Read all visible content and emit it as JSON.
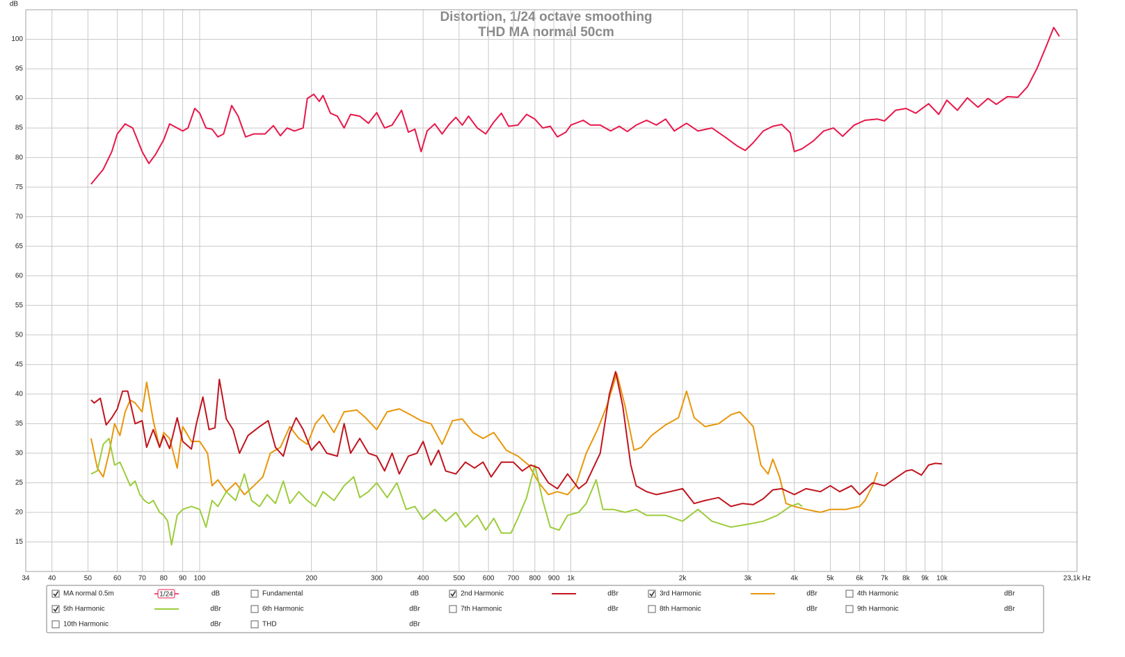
{
  "chart_data": {
    "type": "line",
    "title": "Distortion, 1/24 octave smoothing",
    "subtitle": "THD MA normal 50cm",
    "y_label": "dB",
    "log_x": true,
    "grid": true,
    "xlim": [
      34,
      23100
    ],
    "ylim": [
      10,
      105
    ],
    "xticks": [
      34,
      40,
      50,
      60,
      70,
      80,
      90,
      100,
      200,
      300,
      400,
      500,
      600,
      700,
      800,
      900,
      {
        "value": 1000,
        "label": "1k"
      },
      {
        "value": 2000,
        "label": "2k"
      },
      {
        "value": 3000,
        "label": "3k"
      },
      {
        "value": 4000,
        "label": "4k"
      },
      {
        "value": 5000,
        "label": "5k"
      },
      {
        "value": 6000,
        "label": "6k"
      },
      {
        "value": 7000,
        "label": "7k"
      },
      {
        "value": 8000,
        "label": "8k"
      },
      {
        "value": 9000,
        "label": "9k"
      },
      {
        "value": 10000,
        "label": "10k"
      },
      {
        "value": 23100,
        "label": "23,1k Hz"
      }
    ],
    "yticks": [
      15,
      20,
      25,
      30,
      35,
      40,
      45,
      50,
      55,
      60,
      65,
      70,
      75,
      80,
      85,
      90,
      95,
      100
    ],
    "series": [
      {
        "name": "MA normal 0.5m",
        "color": "#e8174a",
        "checked": true,
        "unit": "dB",
        "smoothing": "1/24",
        "x": [
          51,
          55,
          58,
          60,
          63,
          66,
          68,
          70,
          73,
          76,
          80,
          83,
          87,
          90,
          93,
          97,
          100,
          104,
          108,
          112,
          116,
          122,
          127,
          133,
          140,
          150,
          158,
          165,
          172,
          180,
          190,
          195,
          203,
          210,
          215,
          225,
          235,
          245,
          255,
          270,
          285,
          300,
          315,
          330,
          350,
          365,
          380,
          395,
          410,
          430,
          450,
          470,
          490,
          510,
          530,
          560,
          590,
          620,
          650,
          680,
          720,
          760,
          800,
          840,
          880,
          920,
          970,
          1000,
          1080,
          1130,
          1200,
          1280,
          1350,
          1420,
          1500,
          1600,
          1700,
          1800,
          1900,
          2050,
          2200,
          2400,
          2600,
          2800,
          2950,
          3100,
          3300,
          3500,
          3700,
          3900,
          4000,
          4200,
          4500,
          4800,
          5100,
          5400,
          5800,
          6200,
          6700,
          7000,
          7500,
          8000,
          8500,
          9200,
          9800,
          10300,
          11000,
          11700,
          12500,
          13300,
          14000,
          15000,
          16000,
          17000,
          18000,
          19000,
          20000,
          20700
        ],
        "values": [
          75.5,
          78,
          81,
          84,
          85.7,
          85,
          83,
          81,
          79,
          80.5,
          83,
          85.7,
          85,
          84.5,
          85,
          88.3,
          87.5,
          85,
          84.8,
          83.5,
          84,
          88.8,
          87,
          83.5,
          84,
          84,
          85.4,
          83.7,
          85,
          84.5,
          85,
          90,
          90.7,
          89.5,
          90.5,
          87.5,
          87,
          85,
          87.3,
          87,
          85.8,
          87.6,
          85,
          85.5,
          88,
          84.3,
          84.8,
          81,
          84.5,
          85.7,
          84,
          85.6,
          86.8,
          85.5,
          87,
          85,
          84,
          86,
          87.5,
          85.3,
          85.5,
          87.3,
          86.5,
          85,
          85.3,
          83.5,
          84.3,
          85.5,
          86.3,
          85.5,
          85.5,
          84.5,
          85.3,
          84.4,
          85.5,
          86.3,
          85.5,
          86.5,
          84.5,
          85.8,
          84.5,
          85,
          83.5,
          82,
          81.2,
          82.5,
          84.5,
          85.3,
          85.6,
          84.2,
          81,
          81.5,
          82.8,
          84.5,
          85,
          83.6,
          85.5,
          86.3,
          86.5,
          86.2,
          88,
          88.3,
          87.5,
          89.1,
          87.3,
          89.7,
          88,
          90.1,
          88.5,
          90,
          89,
          90.3,
          90.2,
          92,
          95,
          98.5,
          102,
          100.5
        ]
      },
      {
        "name": "Fundamental",
        "color": "#8b1c1c",
        "checked": false,
        "unit": "dB"
      },
      {
        "name": "2nd Harmonic",
        "color": "#c0141e",
        "checked": true,
        "unit": "dBr",
        "x": [
          51,
          52,
          54,
          56,
          58,
          60,
          62,
          64,
          67,
          70,
          72,
          75,
          78,
          80,
          83,
          87,
          90,
          95,
          98,
          102,
          106,
          110,
          113,
          118,
          123,
          128,
          135,
          145,
          153,
          160,
          168,
          175,
          182,
          190,
          200,
          210,
          220,
          235,
          245,
          255,
          270,
          285,
          300,
          315,
          330,
          345,
          365,
          385,
          400,
          420,
          440,
          460,
          490,
          520,
          550,
          580,
          610,
          650,
          700,
          740,
          780,
          820,
          870,
          920,
          980,
          1050,
          1100,
          1200,
          1270,
          1320,
          1380,
          1450,
          1500,
          1600,
          1700,
          1850,
          2000,
          2150,
          2300,
          2500,
          2700,
          2900,
          3100,
          3300,
          3500,
          3700,
          4000,
          4300,
          4700,
          5000,
          5300,
          5700,
          6000,
          6500,
          7000,
          7500,
          8000,
          8300,
          8800,
          9200,
          9600,
          10000
        ],
        "values": [
          39,
          38.5,
          39.3,
          34.8,
          36,
          37.5,
          40.5,
          40.5,
          35,
          35.5,
          31,
          34,
          31,
          33,
          30.8,
          36,
          32,
          30.7,
          35,
          39.5,
          34,
          34.3,
          42.5,
          35.8,
          34,
          30,
          33,
          34.5,
          35.5,
          31,
          29.5,
          33.5,
          36,
          34,
          30.5,
          32,
          30,
          29.5,
          35,
          30,
          32.5,
          30,
          29.5,
          27,
          30,
          26.5,
          29.5,
          30,
          32,
          28,
          30.5,
          27,
          26.5,
          28.5,
          27.5,
          28.5,
          26,
          28.5,
          28.5,
          27,
          28,
          27.5,
          25,
          24,
          26.5,
          24,
          25,
          30,
          40,
          43.8,
          38,
          28,
          24.5,
          23.5,
          23,
          23.5,
          24,
          21.5,
          22,
          22.5,
          21,
          21.5,
          21.3,
          22.3,
          23.8,
          24,
          23,
          24,
          23.5,
          24.5,
          23.5,
          24.5,
          23,
          25,
          24.5,
          25.8,
          27,
          27.2,
          26.3,
          28,
          28.3,
          28.2
        ]
      },
      {
        "name": "3rd Harmonic",
        "color": "#e8960a",
        "checked": true,
        "unit": "dBr",
        "x": [
          51,
          53,
          55,
          57,
          59,
          61,
          63,
          65,
          67,
          70,
          72,
          75,
          78,
          80,
          83,
          87,
          90,
          95,
          100,
          105,
          108,
          112,
          118,
          125,
          132,
          140,
          148,
          155,
          165,
          175,
          185,
          195,
          205,
          215,
          230,
          245,
          265,
          280,
          300,
          320,
          345,
          370,
          395,
          420,
          450,
          480,
          510,
          545,
          580,
          620,
          670,
          720,
          770,
          820,
          870,
          920,
          980,
          1030,
          1100,
          1180,
          1250,
          1330,
          1400,
          1480,
          1550,
          1650,
          1800,
          1950,
          2050,
          2150,
          2300,
          2500,
          2700,
          2850,
          3000,
          3100,
          3250,
          3400,
          3500,
          3650,
          3800,
          4000,
          4300,
          4700,
          5000,
          5500,
          6000,
          6200,
          6500,
          6700
        ],
        "values": [
          32.5,
          27.5,
          26,
          30,
          35,
          33,
          37,
          39,
          38.5,
          37,
          42,
          35.5,
          31,
          33.5,
          32.5,
          27.5,
          34.5,
          32,
          32,
          30,
          24.5,
          25.5,
          23.5,
          25,
          23,
          24.5,
          26,
          30,
          31,
          34.5,
          32.5,
          31.5,
          35,
          36.5,
          33.5,
          37,
          37.3,
          36,
          34,
          37,
          37.5,
          36.5,
          35.5,
          35,
          31.5,
          35.5,
          35.8,
          33.5,
          32.5,
          33.5,
          30.5,
          29.5,
          28,
          25,
          23,
          23.5,
          23,
          24.5,
          30,
          34,
          38,
          43.5,
          38,
          30.5,
          31,
          33,
          34.8,
          36,
          40.5,
          36,
          34.5,
          35,
          36.5,
          37,
          35.5,
          34.5,
          28,
          26.5,
          29,
          26,
          21.5,
          21,
          20.5,
          20,
          20.5,
          20.5,
          21,
          22,
          24.5,
          26.8
        ]
      },
      {
        "name": "4th Harmonic",
        "color": "#d4b800",
        "checked": false,
        "unit": "dBr"
      },
      {
        "name": "5th Harmonic",
        "color": "#9ccc3c",
        "checked": true,
        "unit": "dBr",
        "x": [
          51,
          53,
          55,
          57,
          59,
          61,
          63,
          65,
          67,
          69,
          71,
          73,
          75,
          78,
          80,
          82,
          84,
          87,
          90,
          95,
          100,
          104,
          108,
          112,
          118,
          125,
          132,
          138,
          145,
          152,
          160,
          168,
          175,
          185,
          195,
          205,
          215,
          230,
          245,
          260,
          270,
          285,
          300,
          320,
          340,
          360,
          380,
          400,
          430,
          460,
          490,
          520,
          560,
          590,
          620,
          650,
          690,
          720,
          760,
          800,
          840,
          880,
          930,
          980,
          1050,
          1100,
          1170,
          1220,
          1300,
          1400,
          1500,
          1600,
          1800,
          2000,
          2200,
          2400,
          2700,
          3000,
          3300,
          3600,
          3900,
          4100,
          4200
        ],
        "values": [
          26.5,
          27,
          31.5,
          32.5,
          28,
          28.5,
          26.5,
          24.5,
          25.3,
          23,
          22,
          21.5,
          22,
          20,
          19.5,
          18.5,
          14.5,
          19.5,
          20.5,
          21,
          20.5,
          17.5,
          22,
          21,
          23.5,
          22,
          26.5,
          22,
          21,
          23,
          21.5,
          25.3,
          21.5,
          23.5,
          22,
          21,
          23.5,
          22,
          24.5,
          26,
          22.5,
          23.5,
          25,
          22.5,
          25,
          20.5,
          21,
          18.8,
          20.5,
          18.5,
          20,
          17.5,
          19.5,
          17,
          19,
          16.5,
          16.5,
          19,
          22.5,
          28,
          22,
          17.5,
          17,
          19.5,
          20,
          21.5,
          25.5,
          20.5,
          20.5,
          20,
          20.5,
          19.5,
          19.5,
          18.5,
          20.5,
          18.5,
          17.5,
          18,
          18.5,
          19.5,
          21,
          21.5,
          21
        ]
      },
      {
        "name": "6th Harmonic",
        "color": "#4a78d8",
        "checked": false,
        "unit": "dBr"
      },
      {
        "name": "7th Harmonic",
        "color": "#e070e0",
        "checked": false,
        "unit": "dBr"
      },
      {
        "name": "8th Harmonic",
        "color": "#888888",
        "checked": false,
        "unit": "dBr"
      },
      {
        "name": "9th Harmonic",
        "color": "#20a8b8",
        "checked": false,
        "unit": "dBr"
      },
      {
        "name": "10th Harmonic",
        "color": "#8a7a00",
        "checked": false,
        "unit": "dBr"
      },
      {
        "name": "THD",
        "color": "#404040",
        "checked": false,
        "unit": "dBr"
      }
    ]
  }
}
